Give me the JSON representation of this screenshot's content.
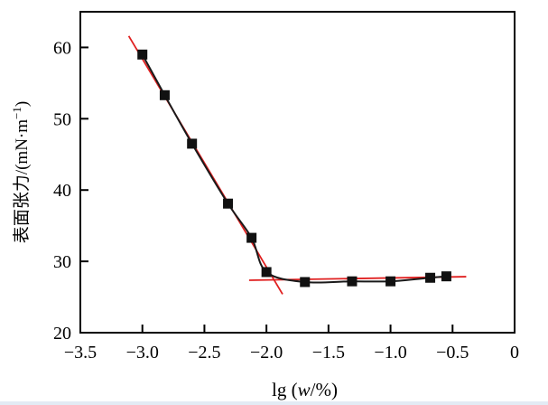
{
  "figure": {
    "background": "#ffffff",
    "bottom_strip_color": "#e3ebf4"
  },
  "chart_data": {
    "type": "scatter",
    "title": "",
    "xlabel": "lg (w/%)",
    "xlabel_parts": {
      "prefix": "lg (",
      "italic": "w",
      "suffix": "/%)"
    },
    "ylabel": "表面张力/(mN·m⁻¹)",
    "ylabel_parts": {
      "main": "表面张力/(mN·m",
      "superscript": "−1",
      "close": ")"
    },
    "xlim": [
      -3.5,
      0
    ],
    "ylim": [
      20,
      65
    ],
    "grid": false,
    "legend": "none",
    "xticks": {
      "values": [
        -3.5,
        -3.0,
        -2.5,
        -2.0,
        -1.5,
        -1.0,
        -0.5,
        0
      ],
      "labels": [
        "−3.5",
        "−3.0",
        "−2.5",
        "−2.0",
        "−1.5",
        "−1.0",
        "−0.5",
        "0"
      ]
    },
    "yticks": {
      "values": [
        20,
        30,
        40,
        50,
        60
      ],
      "labels": [
        "20",
        "30",
        "40",
        "50",
        "60"
      ]
    },
    "series": [
      {
        "name": "surface-tension-vs-lgw",
        "marker": "square",
        "points": [
          [
            -3.0,
            59.0
          ],
          [
            -2.82,
            53.3
          ],
          [
            -2.6,
            46.5
          ],
          [
            -2.31,
            38.1
          ],
          [
            -2.12,
            33.3
          ],
          [
            -2.0,
            28.5
          ],
          [
            -1.69,
            27.1
          ],
          [
            -1.31,
            27.2
          ],
          [
            -1.0,
            27.2
          ],
          [
            -0.68,
            27.7
          ],
          [
            -0.55,
            27.9
          ]
        ]
      }
    ],
    "fit_lines": [
      {
        "name": "descending-tangent",
        "x1": -3.11,
        "y1": 61.6,
        "x2": -1.87,
        "y2": 25.4
      },
      {
        "name": "plateau-tangent",
        "x1": -2.14,
        "y1": 27.35,
        "x2": -0.39,
        "y2": 27.85
      }
    ],
    "colors": {
      "marker": "#111111",
      "curve": "#1a1a1a",
      "fit_line": "#e02020",
      "axis": "#000000"
    }
  }
}
